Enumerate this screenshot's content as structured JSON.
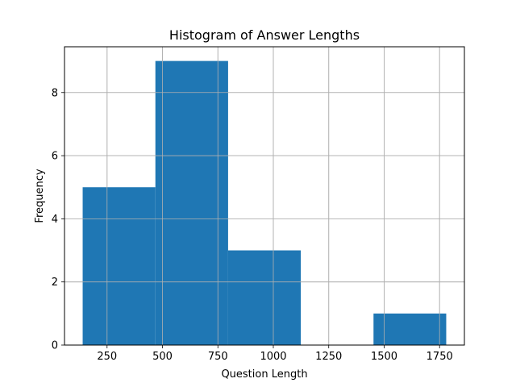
{
  "chart_data": {
    "type": "bar",
    "title": "Histogram of Answer Lengths",
    "xlabel": "Question Length",
    "ylabel": "Frequency",
    "bins": [
      {
        "start": 140,
        "end": 468,
        "count": 5
      },
      {
        "start": 468,
        "end": 796,
        "count": 9
      },
      {
        "start": 796,
        "end": 1124,
        "count": 3
      },
      {
        "start": 1124,
        "end": 1452,
        "count": 0
      },
      {
        "start": 1452,
        "end": 1780,
        "count": 1
      }
    ],
    "xlim": [
      58,
      1862
    ],
    "ylim": [
      0,
      9.45
    ],
    "xticks": [
      250,
      500,
      750,
      1000,
      1250,
      1500,
      1750
    ],
    "xtick_labels": [
      "250",
      "500",
      "750",
      "1000",
      "1250",
      "1500",
      "1750"
    ],
    "yticks": [
      0,
      2,
      4,
      6,
      8
    ],
    "ytick_labels": [
      "0",
      "2",
      "4",
      "6",
      "8"
    ],
    "grid": true,
    "bar_color": "#1f77b4",
    "grid_color": "#b0b0b0"
  }
}
